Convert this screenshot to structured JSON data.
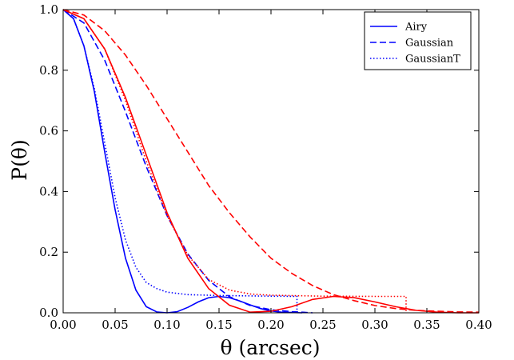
{
  "chart_data": {
    "type": "line",
    "title": "",
    "xlabel": "θ (arcsec)",
    "ylabel": "P(θ)",
    "xlim": [
      0.0,
      0.4
    ],
    "ylim": [
      0.0,
      1.0
    ],
    "xticks": [
      "0.00",
      "0.05",
      "0.10",
      "0.15",
      "0.20",
      "0.25",
      "0.30",
      "0.35",
      "0.40"
    ],
    "yticks": [
      "0.0",
      "0.2",
      "0.4",
      "0.6",
      "0.8",
      "1.0"
    ],
    "grid": false,
    "legend": {
      "position": "top-right",
      "entries": [
        {
          "label": "Airy",
          "dash": "solid"
        },
        {
          "label": "Gaussian",
          "dash": "dashed"
        },
        {
          "label": "GaussianT",
          "dash": "dotted"
        }
      ]
    },
    "colors": {
      "blue": "#0000ff",
      "red": "#ff0000"
    },
    "series": [
      {
        "color": "#0000ff",
        "dash": "solid",
        "x": [
          0,
          0.01,
          0.02,
          0.03,
          0.04,
          0.05,
          0.06,
          0.07,
          0.08,
          0.09,
          0.1,
          0.11,
          0.12,
          0.13,
          0.14,
          0.15,
          0.16,
          0.17,
          0.18,
          0.19,
          0.2,
          0.21,
          0.22,
          0.23
        ],
        "y": [
          1.0,
          0.97,
          0.88,
          0.73,
          0.53,
          0.34,
          0.18,
          0.075,
          0.02,
          0.003,
          0.0,
          0.004,
          0.018,
          0.036,
          0.05,
          0.054,
          0.05,
          0.039,
          0.026,
          0.014,
          0.006,
          0.002,
          0.001,
          0.0
        ]
      },
      {
        "color": "#0000ff",
        "dash": "dashed",
        "x": [
          0,
          0.02,
          0.04,
          0.06,
          0.08,
          0.1,
          0.12,
          0.14,
          0.16,
          0.18,
          0.2,
          0.22,
          0.24
        ],
        "y": [
          1.0,
          0.956,
          0.833,
          0.663,
          0.482,
          0.32,
          0.194,
          0.107,
          0.053,
          0.024,
          0.01,
          0.004,
          0.0
        ]
      },
      {
        "color": "#0000ff",
        "dash": "dotted",
        "x": [
          0,
          0.01,
          0.02,
          0.03,
          0.04,
          0.05,
          0.06,
          0.07,
          0.08,
          0.09,
          0.1,
          0.12,
          0.15,
          0.2,
          0.225,
          0.225
        ],
        "y": [
          1.0,
          0.97,
          0.88,
          0.74,
          0.56,
          0.38,
          0.24,
          0.15,
          0.1,
          0.08,
          0.068,
          0.06,
          0.057,
          0.055,
          0.054,
          0.0
        ]
      },
      {
        "color": "#ff0000",
        "dash": "solid",
        "x": [
          0,
          0.02,
          0.04,
          0.06,
          0.08,
          0.1,
          0.12,
          0.14,
          0.16,
          0.18,
          0.2,
          0.22,
          0.24,
          0.26,
          0.28,
          0.3,
          0.32,
          0.34,
          0.36,
          0.38,
          0.4
        ],
        "y": [
          1.0,
          0.97,
          0.87,
          0.71,
          0.52,
          0.33,
          0.18,
          0.08,
          0.025,
          0.002,
          0.005,
          0.02,
          0.044,
          0.054,
          0.05,
          0.036,
          0.02,
          0.008,
          0.002,
          0.0,
          0.0
        ]
      },
      {
        "color": "#ff0000",
        "dash": "dashed",
        "x": [
          0,
          0.02,
          0.04,
          0.06,
          0.08,
          0.1,
          0.12,
          0.14,
          0.16,
          0.18,
          0.2,
          0.22,
          0.24,
          0.26,
          0.28,
          0.3,
          0.32,
          0.34,
          0.36,
          0.38,
          0.4
        ],
        "y": [
          1.0,
          0.982,
          0.93,
          0.85,
          0.75,
          0.64,
          0.53,
          0.42,
          0.33,
          0.25,
          0.18,
          0.13,
          0.09,
          0.06,
          0.04,
          0.024,
          0.014,
          0.008,
          0.005,
          0.003,
          0.002
        ]
      },
      {
        "color": "#ff0000",
        "dash": "dotted",
        "x": [
          0,
          0.02,
          0.04,
          0.06,
          0.08,
          0.1,
          0.12,
          0.14,
          0.16,
          0.18,
          0.2,
          0.25,
          0.3,
          0.33,
          0.33
        ],
        "y": [
          1.0,
          0.97,
          0.87,
          0.7,
          0.5,
          0.32,
          0.19,
          0.11,
          0.075,
          0.062,
          0.058,
          0.055,
          0.054,
          0.054,
          0.0
        ]
      }
    ]
  }
}
